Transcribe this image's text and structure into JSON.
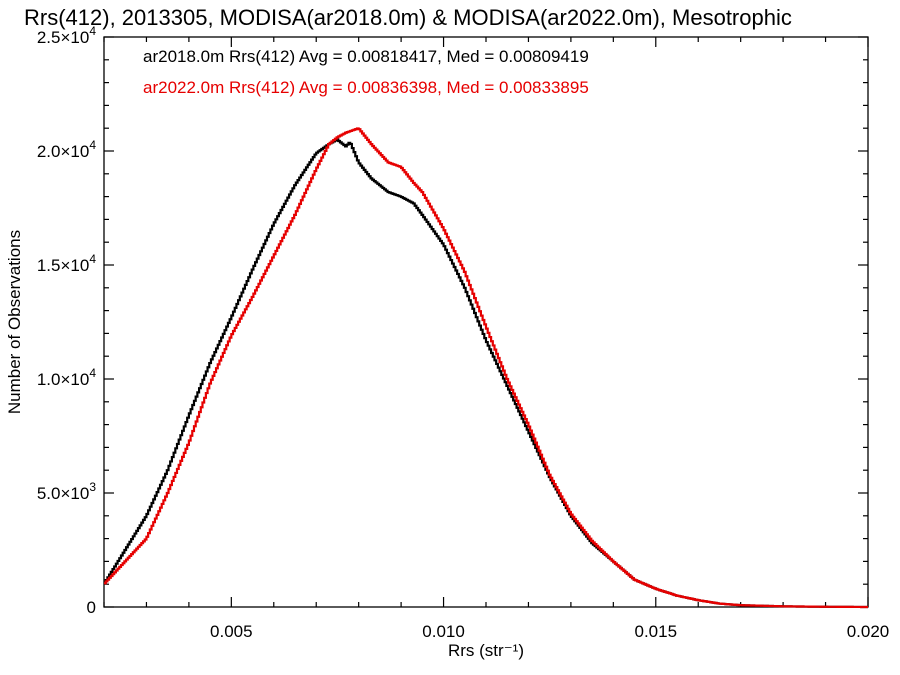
{
  "chart_data": {
    "type": "line",
    "title": "Rrs(412), 2013305, MODISA(ar2018.0m) & MODISA(ar2022.0m), Mesotrophic",
    "xlabel": "Rrs (str⁻¹)",
    "ylabel": "Number of Observations",
    "xlim": [
      0.002,
      0.02
    ],
    "ylim": [
      0,
      25000
    ],
    "x_ticks": [
      0.005,
      0.01,
      0.015,
      0.02
    ],
    "x_tick_labels": [
      "0.005",
      "0.010",
      "0.015",
      "0.020"
    ],
    "y_ticks": [
      0,
      5000,
      10000,
      15000,
      20000,
      25000
    ],
    "y_tick_labels": [
      {
        "mant": "0",
        "exp": ""
      },
      {
        "mant": "5.0×10",
        "exp": "3"
      },
      {
        "mant": "1.0×10",
        "exp": "4"
      },
      {
        "mant": "1.5×10",
        "exp": "4"
      },
      {
        "mant": "2.0×10",
        "exp": "4"
      },
      {
        "mant": "2.5×10",
        "exp": "4"
      }
    ],
    "legend_entries": [
      "ar2018.0m Rrs(412) Avg = 0.00818417, Med = 0.00809419",
      "ar2022.0m Rrs(412) Avg = 0.00836398, Med = 0.00833895"
    ],
    "legend_placement": "top-left",
    "series": [
      {
        "color": "#000000",
        "x": [
          0.002,
          0.0025,
          0.003,
          0.0035,
          0.004,
          0.0045,
          0.005,
          0.0055,
          0.006,
          0.0065,
          0.007,
          0.0073,
          0.0075,
          0.0077,
          0.0078,
          0.008,
          0.0083,
          0.0087,
          0.009,
          0.0093,
          0.0095,
          0.01,
          0.0105,
          0.011,
          0.0115,
          0.012,
          0.0125,
          0.013,
          0.0135,
          0.014,
          0.0145,
          0.015,
          0.0155,
          0.016,
          0.0165,
          0.017,
          0.018,
          0.019,
          0.02
        ],
        "y": [
          1000,
          2500,
          4000,
          6000,
          8400,
          10700,
          12700,
          14800,
          16800,
          18500,
          19900,
          20300,
          20500,
          20200,
          20400,
          19500,
          18800,
          18200,
          18000,
          17700,
          17200,
          15900,
          14000,
          11700,
          9700,
          7700,
          5700,
          4000,
          2800,
          2000,
          1200,
          800,
          500,
          300,
          150,
          80,
          30,
          10,
          0
        ]
      },
      {
        "color": "#e60000",
        "x": [
          0.002,
          0.0025,
          0.003,
          0.0035,
          0.004,
          0.0045,
          0.005,
          0.0055,
          0.006,
          0.0065,
          0.007,
          0.0073,
          0.0075,
          0.0077,
          0.008,
          0.0083,
          0.0087,
          0.009,
          0.0093,
          0.0095,
          0.01,
          0.0105,
          0.011,
          0.0115,
          0.012,
          0.0125,
          0.013,
          0.0135,
          0.014,
          0.0145,
          0.015,
          0.0155,
          0.016,
          0.0165,
          0.017,
          0.018,
          0.019,
          0.02
        ],
        "y": [
          1000,
          2000,
          3000,
          5000,
          7200,
          9800,
          11900,
          13600,
          15400,
          17200,
          19200,
          20300,
          20600,
          20800,
          21000,
          20300,
          19500,
          19300,
          18600,
          18200,
          16600,
          14700,
          12300,
          10000,
          8000,
          5800,
          4100,
          2900,
          2000,
          1200,
          800,
          500,
          300,
          150,
          80,
          30,
          10,
          0
        ]
      }
    ]
  }
}
